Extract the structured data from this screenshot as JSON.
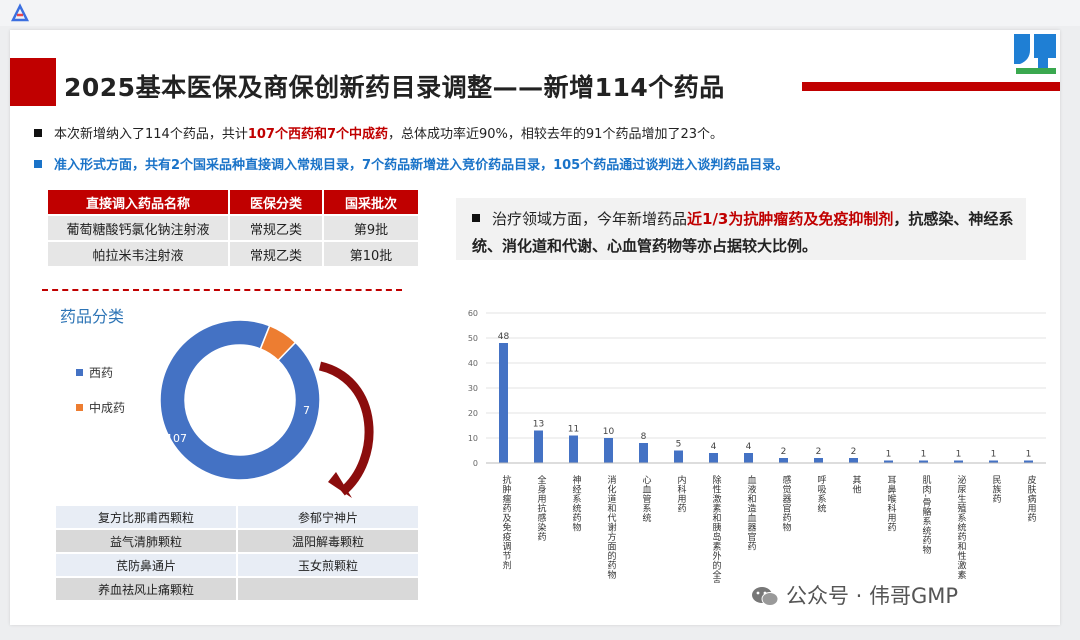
{
  "slide": {
    "title": "2025基本医保及商保创新药目录调整——新增114个药品",
    "bullet1": {
      "part1": "本次新增纳入了114个药品，共计",
      "highlight": "107个西药和7个中成药",
      "part2": "，总体成功率近90%，相较去年的91个药品增加了23个。"
    },
    "bullet2": "准入形式方面，共有2个国采品种直接调入常规目录，7个药品新增进入竞价药品目录，105个药品通过谈判进入谈判药品目录。",
    "direct_table": {
      "headers": [
        "直接调入药品名称",
        "医保分类",
        "国采批次"
      ],
      "rows": [
        [
          "葡萄糖酸钙氯化钠注射液",
          "常规乙类",
          "第9批"
        ],
        [
          "帕拉米韦注射液",
          "常规乙类",
          "第10批"
        ]
      ]
    },
    "category": {
      "title": "药品分类",
      "legend": [
        "西药",
        "中成药"
      ],
      "colors": [
        "#4472c4",
        "#ed7d31"
      ],
      "values": [
        107,
        7
      ],
      "labels": [
        "107",
        "7"
      ]
    },
    "tcm_table": [
      [
        "复方比那甫西颗粒",
        "参郁宁神片"
      ],
      [
        "益气清肺颗粒",
        "温阳解毒颗粒"
      ],
      [
        "芪防鼻通片",
        "玉女煎颗粒"
      ],
      [
        "养血祛风止痛颗粒",
        ""
      ]
    ],
    "panel": {
      "part1": "治疗领域方面，今年新增药品",
      "highlight": "近1/3为抗肿瘤药及免疫抑制剂",
      "part2": "，抗感染、神经系统、消化道和代谢、心血管药物等亦占据较大比例。"
    },
    "watermark": "公众号 · 伟哥GMP"
  },
  "chart_data": {
    "type": "bar",
    "categories": [
      "抗肿瘤药及免疫调节剂",
      "全身用抗感染药",
      "神经系统药物",
      "消化道和代谢方面的药物",
      "心血管系统",
      "内科用药",
      "除性激素和胰岛素外的全身激素制剂",
      "血液和造血器官药",
      "感觉器官药物",
      "呼吸系统",
      "其他",
      "耳鼻喉科用药",
      "肌肉-骨骼系统药物",
      "泌尿生殖系统药和性激素",
      "民族药",
      "皮肤病用药"
    ],
    "values": [
      48,
      13,
      11,
      10,
      8,
      5,
      4,
      4,
      2,
      2,
      2,
      1,
      1,
      1,
      1,
      1
    ],
    "ylim": [
      0,
      60
    ],
    "yticks": [
      "0",
      "10",
      "20",
      "30",
      "40",
      "50",
      "60"
    ],
    "grid": true,
    "color": "#4472c4"
  }
}
